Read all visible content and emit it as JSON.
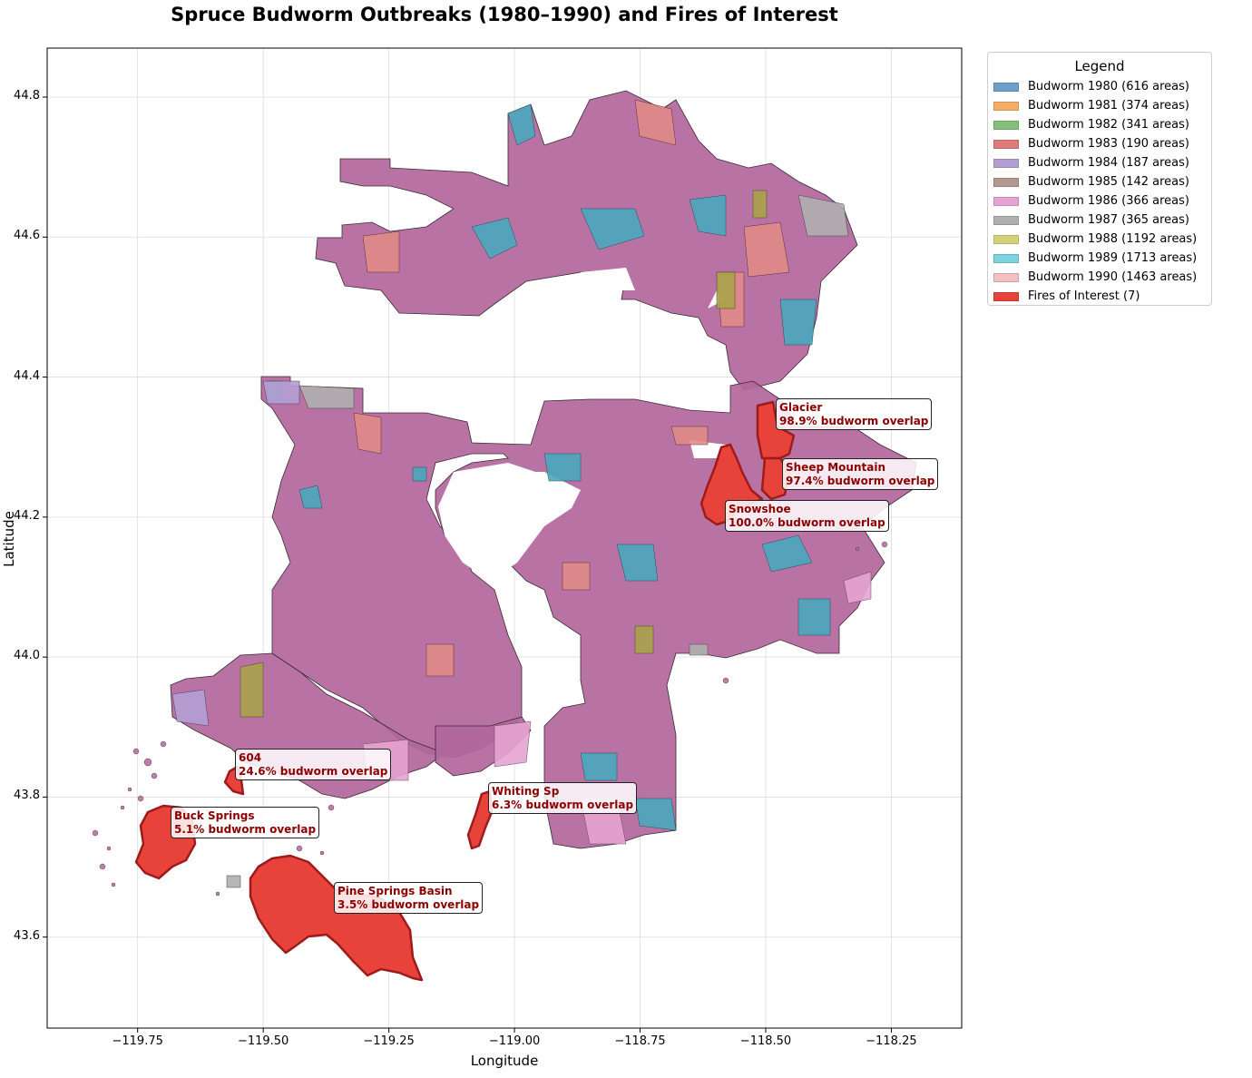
{
  "title": "Spruce Budworm Outbreaks (1980–1990) and Fires of Interest",
  "xlabel": "Longitude",
  "ylabel": "Latitude",
  "x_ticks": [
    "−119.75",
    "−119.50",
    "−119.25",
    "−119.00",
    "−118.75",
    "−118.50",
    "−118.25"
  ],
  "y_ticks": [
    "43.6",
    "43.8",
    "44.0",
    "44.2",
    "44.4",
    "44.6",
    "44.8"
  ],
  "legend": {
    "title": "Legend",
    "items": [
      {
        "label": "Budworm 1980 (616 areas)",
        "color": "#6d9fcd"
      },
      {
        "label": "Budworm 1981 (374 areas)",
        "color": "#f6ad68"
      },
      {
        "label": "Budworm 1982 (341 areas)",
        "color": "#84bf7b"
      },
      {
        "label": "Budworm 1983 (190 areas)",
        "color": "#e07a7b"
      },
      {
        "label": "Budworm 1984 (187 areas)",
        "color": "#b49fd3"
      },
      {
        "label": "Budworm 1985 (142 areas)",
        "color": "#b39690"
      },
      {
        "label": "Budworm 1986 (366 areas)",
        "color": "#e6a4d3"
      },
      {
        "label": "Budworm 1987 (365 areas)",
        "color": "#afafaf"
      },
      {
        "label": "Budworm 1988 (1192 areas)",
        "color": "#d3d37a"
      },
      {
        "label": "Budworm 1989 (1713 areas)",
        "color": "#7dd3de"
      },
      {
        "label": "Budworm 1990 (1463 areas)",
        "color": "#f5c0c0"
      },
      {
        "label": "Fires of Interest (7)",
        "color": "#e8433a"
      }
    ]
  },
  "colors": {
    "budworm_dominant": "#b2679c",
    "budworm_teal": "#4aa9be",
    "budworm_salmon": "#e08a86",
    "budworm_olive": "#a9a348",
    "fire_fill": "#e8433a",
    "fire_edge": "#9e1b1b",
    "annotation_text": "#8b0000"
  },
  "chart_data": {
    "type": "map",
    "title": "Spruce Budworm Outbreaks (1980–1990) and Fires of Interest",
    "xlabel": "Longitude",
    "ylabel": "Latitude",
    "xlim": [
      -119.93,
      -118.11
    ],
    "ylim": [
      43.47,
      44.87
    ],
    "grid": true,
    "legend_position": "outside-top-right",
    "fires": [
      {
        "name": "Glacier",
        "label": "Glacier",
        "overlap_text": "98.9% budworm overlap",
        "overlap_pct": 98.9,
        "lon": -118.49,
        "lat": 44.32
      },
      {
        "name": "Sheep Mountain",
        "label": "Sheep Mountain",
        "overlap_text": "97.4% budworm overlap",
        "overlap_pct": 97.4,
        "lon": -118.48,
        "lat": 44.25
      },
      {
        "name": "Snowshoe",
        "label": "Snowshoe",
        "overlap_text": "100.0% budworm overlap",
        "overlap_pct": 100.0,
        "lon": -118.57,
        "lat": 44.23
      },
      {
        "name": "604",
        "label": "604",
        "overlap_text": "24.6% budworm overlap",
        "overlap_pct": 24.6,
        "lon": -119.53,
        "lat": 43.83
      },
      {
        "name": "Buck Springs",
        "label": "Buck Springs",
        "overlap_text": "5.1% budworm overlap",
        "overlap_pct": 5.1,
        "lon": -119.69,
        "lat": 43.74
      },
      {
        "name": "Whiting Sp",
        "label": "Whiting Sp",
        "overlap_text": "6.3% budworm overlap",
        "overlap_pct": 6.3,
        "lon": -119.06,
        "lat": 43.77
      },
      {
        "name": "Pine Springs Basin",
        "label": "Pine Springs Basin",
        "overlap_text": "3.5% budworm overlap",
        "overlap_pct": 3.5,
        "lon": -119.33,
        "lat": 43.63
      }
    ]
  }
}
